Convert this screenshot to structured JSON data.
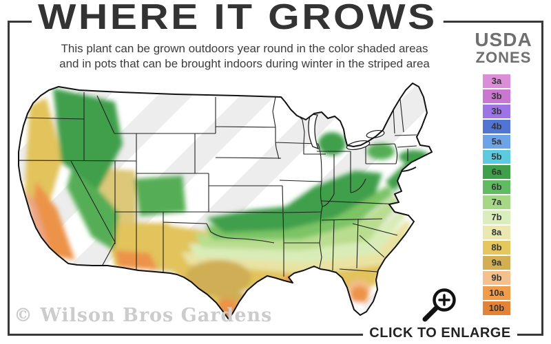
{
  "header": {
    "title": "WHERE IT GROWS",
    "subtitle_line1": "This plant can be grown outdoors year round in the color shaded areas",
    "subtitle_line2": "and in pots that can be brought indoors during winter in the striped area"
  },
  "legend": {
    "title_line1": "USDA",
    "title_line2": "ZONES",
    "zones": [
      {
        "label": "3a",
        "color": "#da8ed8"
      },
      {
        "label": "3b",
        "color": "#c977cf"
      },
      {
        "label": "3b",
        "color": "#9d74e6"
      },
      {
        "label": "4b",
        "color": "#5274d2"
      },
      {
        "label": "5a",
        "color": "#6fa3e8"
      },
      {
        "label": "5b",
        "color": "#5ccbe0"
      },
      {
        "label": "6a",
        "color": "#3fa04c"
      },
      {
        "label": "6b",
        "color": "#62ba62"
      },
      {
        "label": "7a",
        "color": "#a5d787"
      },
      {
        "label": "7b",
        "color": "#d9eebc"
      },
      {
        "label": "8a",
        "color": "#eae8b0"
      },
      {
        "label": "8b",
        "color": "#e5c75d"
      },
      {
        "label": "9a",
        "color": "#d2af53"
      },
      {
        "label": "9b",
        "color": "#f4c08b"
      },
      {
        "label": "10a",
        "color": "#f09d4b"
      },
      {
        "label": "10b",
        "color": "#e28338"
      }
    ]
  },
  "footer": {
    "watermark": "© Wilson Bros Gardens",
    "enlarge_label": "CLICK TO ENLARGE",
    "enlarge_icon": "magnifier-zoom-icon"
  },
  "frame": {
    "border_color": "#383838"
  },
  "map": {
    "subject": "Continental United States hardiness zone shading",
    "palette": {
      "green_dark": "#3f9f4b",
      "green": "#54ae55",
      "green_light": "#7cc466",
      "pale_green": "#b9dd8e",
      "pale_lime": "#d9ecb8",
      "pale_yellow": "#e9e3a3",
      "gold": "#e2c35c",
      "mustard": "#cfae55",
      "peach": "#f2bc86",
      "orange": "#ec9348",
      "salmon": "#eba687",
      "stripe_gray": "#ededed",
      "border_line": "#1f1f1f"
    }
  }
}
